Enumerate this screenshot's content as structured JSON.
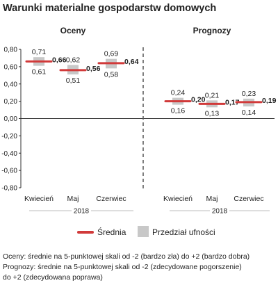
{
  "chart_data": {
    "type": "range-point",
    "title": "Warunki materialne gospodarstw domowych",
    "ylim": [
      -0.8,
      0.8
    ],
    "yticks": [
      -0.8,
      -0.6,
      -0.4,
      -0.2,
      0.0,
      0.2,
      0.4,
      0.6,
      0.8
    ],
    "ytick_labels": [
      "-0,80",
      "-0,60",
      "-0,40",
      "-0,20",
      "0,00",
      "0,20",
      "0,40",
      "0,60",
      "0,80"
    ],
    "grid": false,
    "legend_position": "bottom",
    "panels": [
      {
        "title": "Oceny",
        "year": "2018",
        "categories": [
          "Kwiecień",
          "Maj",
          "Czerwiec"
        ],
        "mean": [
          0.66,
          0.56,
          0.64
        ],
        "mean_labels": [
          "0,66",
          "0,56",
          "0,64"
        ],
        "upper": [
          0.71,
          0.62,
          0.69
        ],
        "upper_labels": [
          "0,71",
          "0,62",
          "0,69"
        ],
        "lower": [
          0.61,
          0.51,
          0.58
        ],
        "lower_labels": [
          "0,61",
          "0,51",
          "0,58"
        ]
      },
      {
        "title": "Prognozy",
        "year": "2018",
        "categories": [
          "Kwiecień",
          "Maj",
          "Czerwiec"
        ],
        "mean": [
          0.2,
          0.17,
          0.19
        ],
        "mean_labels": [
          "0,20",
          "0,17",
          "0,19"
        ],
        "upper": [
          0.24,
          0.21,
          0.23
        ],
        "upper_labels": [
          "0,24",
          "0,21",
          "0,23"
        ],
        "lower": [
          0.16,
          0.13,
          0.14
        ],
        "lower_labels": [
          "0,16",
          "0,13",
          "0,14"
        ]
      }
    ],
    "legend": [
      {
        "label": "Średnia",
        "color": "#d13a3a",
        "shape": "line"
      },
      {
        "label": "Przedział ufności",
        "color": "#c8c8c8",
        "shape": "square"
      }
    ]
  },
  "footnotes": [
    "Oceny: średnie na 5-punktowej skali od -2 (bardzo zła) do +2 (bardzo dobra)",
    "Prognozy: średnie na 5-punktowej skali od -2 (zdecydowane pogorszenie)",
    "do +2 (zdecydowana poprawa)"
  ],
  "colors": {
    "mean": "#d13a3a",
    "interval": "#c8c8c8",
    "axis": "#333333",
    "separator": "#555555"
  }
}
